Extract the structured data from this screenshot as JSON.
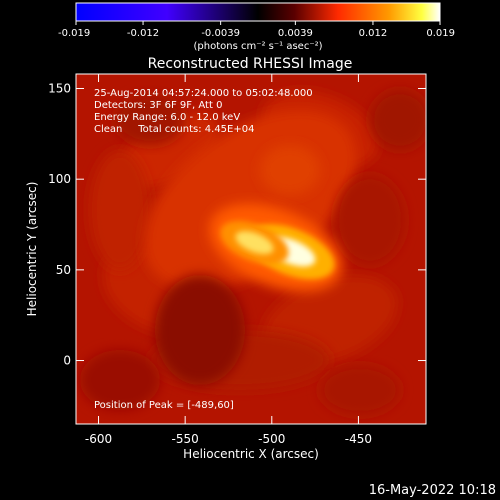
{
  "chart_data": {
    "type": "heatmap",
    "title": "Reconstructed RHESSI Image",
    "xlabel": "Heliocentric X (arcsec)",
    "ylabel": "Heliocentric Y (arcsec)",
    "xlim": [
      -613,
      -411
    ],
    "ylim": [
      -35,
      158
    ],
    "xticks": [
      "-600",
      "-550",
      "-500",
      "-450"
    ],
    "xtick_values": [
      -600,
      -550,
      -500,
      -450
    ],
    "yticks": [
      "150",
      "100",
      "50",
      "0"
    ],
    "ytick_values": [
      150,
      100,
      50,
      0
    ],
    "colorbar": {
      "range": [
        -0.019,
        0.019
      ],
      "ticks": [
        "-0.019",
        "-0.012",
        "-0.0039",
        "0.0039",
        "0.012",
        "0.019"
      ],
      "tick_values": [
        -0.019,
        -0.012,
        -0.0039,
        0.0039,
        0.012,
        0.019
      ],
      "unit_label": "(photons cm⁻² s⁻¹ asec⁻²)",
      "colors": [
        "#0000ff",
        "#4000ff",
        "#000000",
        "#5a0000",
        "#ff2a00",
        "#ff9a00",
        "#ffff40",
        "#ffffff"
      ]
    },
    "annotations": [
      "25-Aug-2014 04:57:24.000 to 05:02:48.000",
      "Detectors: 3F 6F 9F, Att 0",
      "Energy Range: 6.0 - 12.0 keV",
      "Clean     Total counts: 4.45E+04"
    ],
    "peak_label": "Position of Peak = [-489,60]",
    "peak": [
      -489,
      60
    ],
    "sources": [
      {
        "x": -489,
        "y": 60,
        "intensity": 0.019
      },
      {
        "x": -510,
        "y": 65,
        "intensity": 0.014
      }
    ],
    "timestamp": "16-May-2022 10:18"
  }
}
